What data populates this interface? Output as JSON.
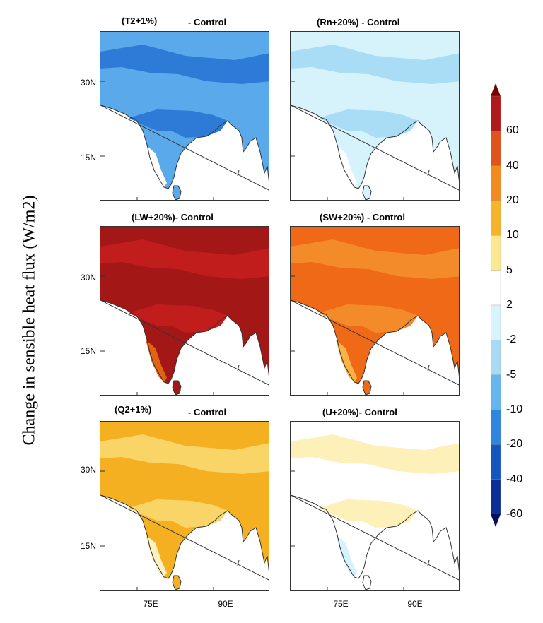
{
  "figure": {
    "ylabel": "Change in sensible heat flux (W/m2)",
    "lat_labels": [
      "30N",
      "15N"
    ],
    "lon_labels": [
      "75E",
      "90E"
    ]
  },
  "panels": [
    {
      "title_a": "(T2+1%)",
      "title_b": "- Control",
      "main": "#5aa9ea",
      "alt": "#2d7bd6",
      "alt2": "#ffffff"
    },
    {
      "title_a": "",
      "title_b": "(Rn+20%) - Control",
      "main": "#d6f2fb",
      "alt": "#a9ddf5",
      "alt2": "#ffffff"
    },
    {
      "title_a": "",
      "title_b": "(LW+20%)- Control",
      "main": "#a31717",
      "alt": "#c21d1d",
      "alt2": "#e06414"
    },
    {
      "title_a": "",
      "title_b": "(SW+20%) - Control",
      "main": "#f06916",
      "alt": "#f48b2a",
      "alt2": "#f9b347"
    },
    {
      "title_a": "(Q2+1%)",
      "title_b": "- Control",
      "main": "#f5b021",
      "alt": "#f9d568",
      "alt2": "#fdf1c0"
    },
    {
      "title_a": "",
      "title_b": "(U+20%)- Control",
      "main": "#ffffff",
      "alt": "#fdf0b8",
      "alt2": "#d6f2fb"
    }
  ],
  "colorbar": {
    "labels": [
      "60",
      "40",
      "20",
      "10",
      "5",
      "2",
      "-2",
      "-5",
      "-10",
      "-20",
      "-40",
      "-60"
    ],
    "colors": [
      "#7a0000",
      "#b01a1a",
      "#e0531a",
      "#f28a1e",
      "#f6b42a",
      "#fce890",
      "#ffffff",
      "#d8f3fb",
      "#a7dbf4",
      "#63b6ee",
      "#2f86de",
      "#1356bd",
      "#0b2f96",
      "#040f5e"
    ]
  }
}
